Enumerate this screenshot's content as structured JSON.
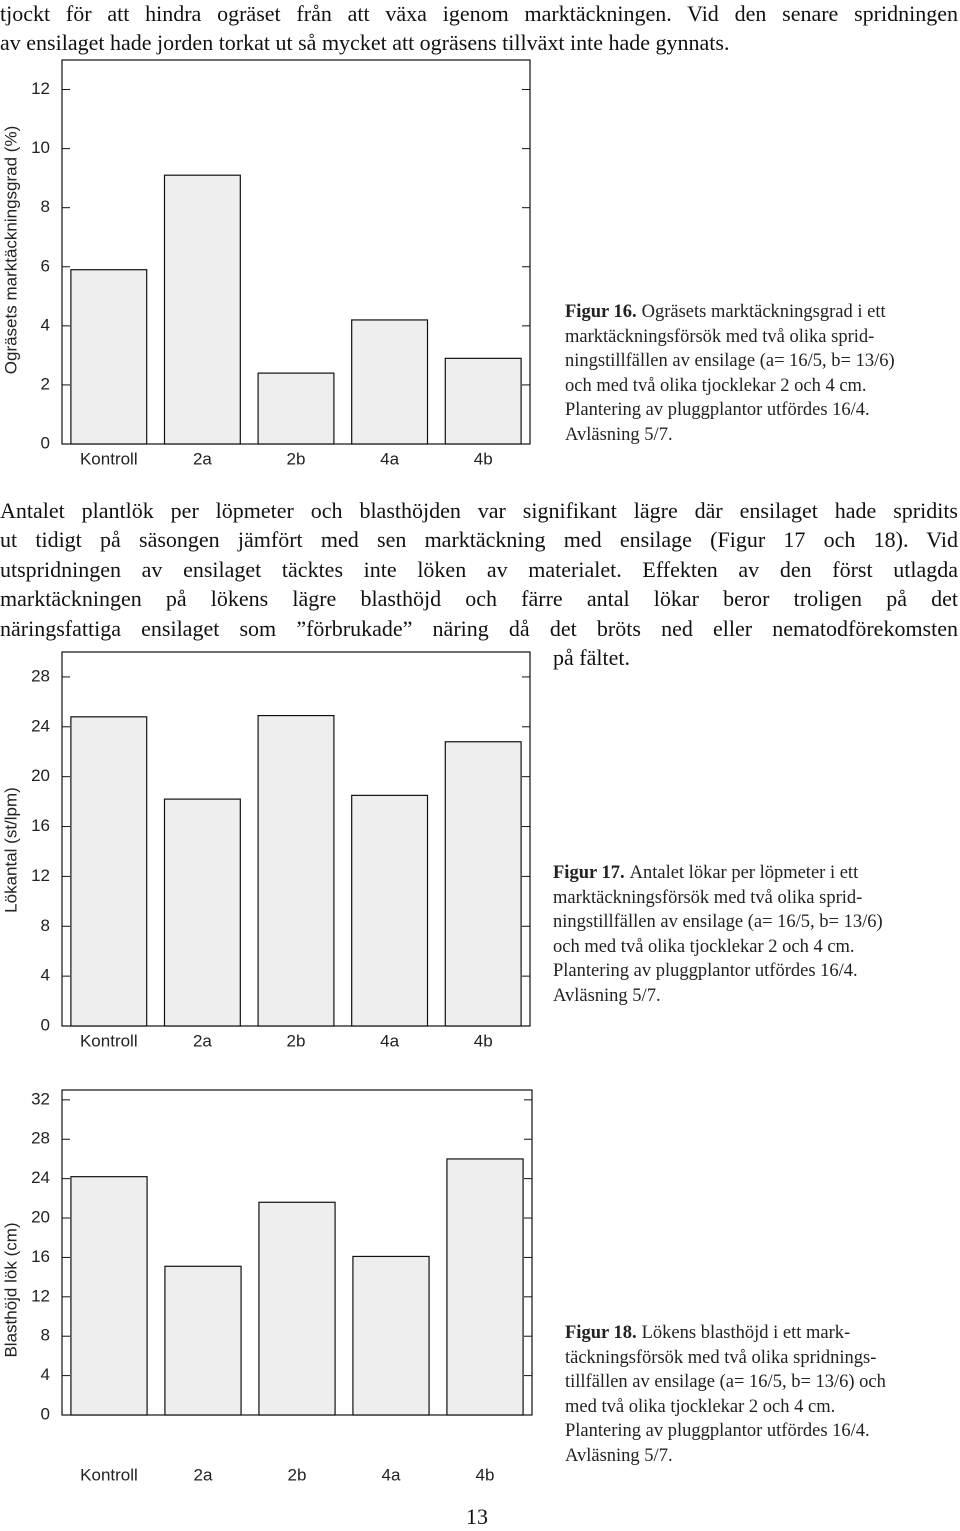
{
  "text_top": {
    "lines": [
      "tjockt för att hindra ogräset från att växa igenom marktäckningen. Vid den senare spridningen",
      "av ensilaget hade jorden torkat ut så mycket att ogräsens tillväxt inte hade gynnats."
    ]
  },
  "paragraph": {
    "lines": [
      "Antalet plantlök per löpmeter och blasthöjden var signifikant lägre där ensilaget hade spridits",
      "ut tidigt på säsongen jämfört med sen marktäckning med ensilage (Figur 17 och 18). Vid",
      "utspridningen av ensilaget täcktes inte löken av materialet. Effekten av den först utlagda",
      "marktäckningen på lökens lägre blasthöjd och färre antal lökar beror troligen på det",
      "näringsfattiga ensilaget som ”förbrukade” näring då det bröts ned eller nematodförekomsten",
      "på fältet."
    ]
  },
  "page_number": "13",
  "chart_data": [
    {
      "type": "bar",
      "y_label": "Ogräsets marktäckningsgrad (%)",
      "categories": [
        "Kontroll",
        "2a",
        "2b",
        "4a",
        "4b"
      ],
      "values": [
        5.9,
        9.1,
        2.4,
        4.2,
        2.9
      ],
      "color": "#eeeeee",
      "ylim": [
        0,
        13
      ],
      "yticks": [
        0,
        2,
        4,
        6,
        8,
        10,
        12
      ],
      "caption": {
        "label": "Figur 16.",
        "lines": [
          "Ogräsets marktäckningsgrad i ett",
          "marktäckningsförsök med två olika sprid-",
          "ningstillfällen av ensilage (a= 16/5, b= 13/6)",
          "och med två olika tjocklekar 2 och 4 cm.",
          "Plantering av pluggplantor utfördes 16/4.",
          "Avläsning 5/7."
        ]
      }
    },
    {
      "type": "bar",
      "y_label": "Lökantal (st/lpm)",
      "categories": [
        "Kontroll",
        "2a",
        "2b",
        "4a",
        "4b"
      ],
      "values": [
        24.8,
        18.2,
        24.9,
        18.5,
        22.8
      ],
      "color": "#eeeeee",
      "ylim": [
        0,
        30
      ],
      "yticks": [
        0,
        4,
        8,
        12,
        16,
        20,
        24,
        28
      ],
      "caption": {
        "label": "Figur 17.",
        "lines": [
          "Antalet lökar per löpmeter i ett",
          "marktäckningsförsök med två olika sprid-",
          "ningstillfällen av ensilage (a= 16/5, b= 13/6)",
          "och med två olika tjocklekar 2 och 4 cm.",
          "Plantering av pluggplantor utfördes 16/4.",
          "Avläsning 5/7."
        ]
      }
    },
    {
      "type": "bar",
      "y_label": "Blasthöjd lök (cm)",
      "categories": [
        "Kontroll",
        "2a",
        "2b",
        "4a",
        "4b"
      ],
      "values": [
        24.2,
        15.1,
        21.6,
        16.1,
        26.0
      ],
      "color": "#eeeeee",
      "ylim": [
        0,
        33
      ],
      "yticks": [
        0,
        4,
        8,
        12,
        16,
        20,
        24,
        28,
        32
      ],
      "caption": {
        "label": "Figur 18.",
        "lines": [
          "Lökens blasthöjd i ett mark-",
          "täckningsförsök med två olika spridnings-",
          "tillfällen av ensilage (a= 16/5, b= 13/6) och",
          "med två olika tjocklekar 2 och 4 cm.",
          "Plantering av pluggplantor utfördes 16/4.",
          "Avläsning 5/7."
        ]
      }
    }
  ]
}
